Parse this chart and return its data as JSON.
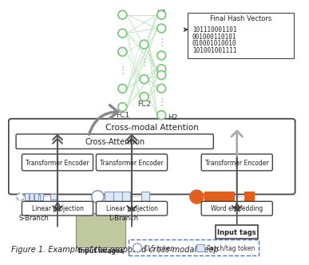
{
  "background_color": "#ffffff",
  "hash_vectors": [
    "101110001101",
    "001000110101",
    "010001010010",
    "101001001111"
  ],
  "colors": {
    "green_edge": "#7DC87D",
    "green_fill": "#ffffff",
    "green_connect": "#B8E0B8",
    "orange": "#E06020",
    "blue_token": "#8899BB",
    "arrow_dark": "#555555",
    "arrow_light": "#AAAAAA",
    "box_border": "#444444",
    "text_dark": "#222222",
    "dashed_blue": "#5577AA",
    "curved_arrow": "#888888"
  },
  "fig_caption": "Figure 1. Example of the proposed cross-modal deep"
}
